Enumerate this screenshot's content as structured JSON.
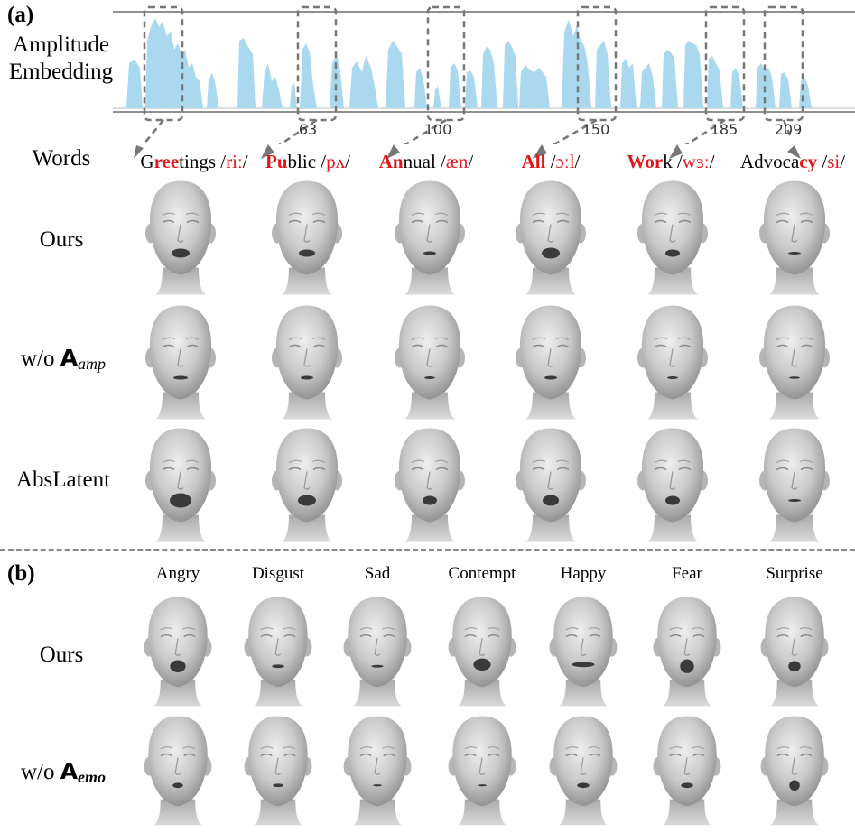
{
  "panel_a": {
    "label": "(a)",
    "embedding_label_line1": "Amplitude",
    "embedding_label_line2": "Embedding",
    "ticks": [
      "63",
      "100",
      "150",
      "185",
      "209"
    ],
    "words_label": "Words",
    "words": [
      {
        "pre": "G",
        "hl": "ree",
        "post": "tings /",
        "ph": "riː",
        "end": "/"
      },
      {
        "pre": "",
        "hl": "Pu",
        "post": "blic /",
        "ph": "pʌ",
        "end": "/"
      },
      {
        "pre": "",
        "hl": "An",
        "post": "nual /",
        "ph": "æn",
        "end": "/"
      },
      {
        "pre": "",
        "hl": "All",
        "post": " /",
        "ph": "ɔːl",
        "end": "/"
      },
      {
        "pre": "",
        "hl": "Wor",
        "post": "k /",
        "ph": "wɜː",
        "end": "/"
      },
      {
        "pre": "Advoca",
        "hl": "cy",
        "post": " /",
        "ph": "si",
        "end": "/"
      }
    ],
    "rows": {
      "ours": "Ours",
      "wo_prefix": "w/o ",
      "wo_A": "A",
      "wo_sub": "amp",
      "abslatent": "AbsLatent"
    }
  },
  "panel_b": {
    "label": "(b)",
    "emotions": [
      "Angry",
      "Disgust",
      "Sad",
      "Contempt",
      "Happy",
      "Fear",
      "Surprise"
    ],
    "rows": {
      "ours": "Ours",
      "wo_prefix": "w/o ",
      "wo_A": "A",
      "wo_sub": "emo"
    }
  },
  "colors": {
    "highlight": "#e0181b",
    "waveform": "#a9d8ef",
    "dashed": "#777777"
  }
}
